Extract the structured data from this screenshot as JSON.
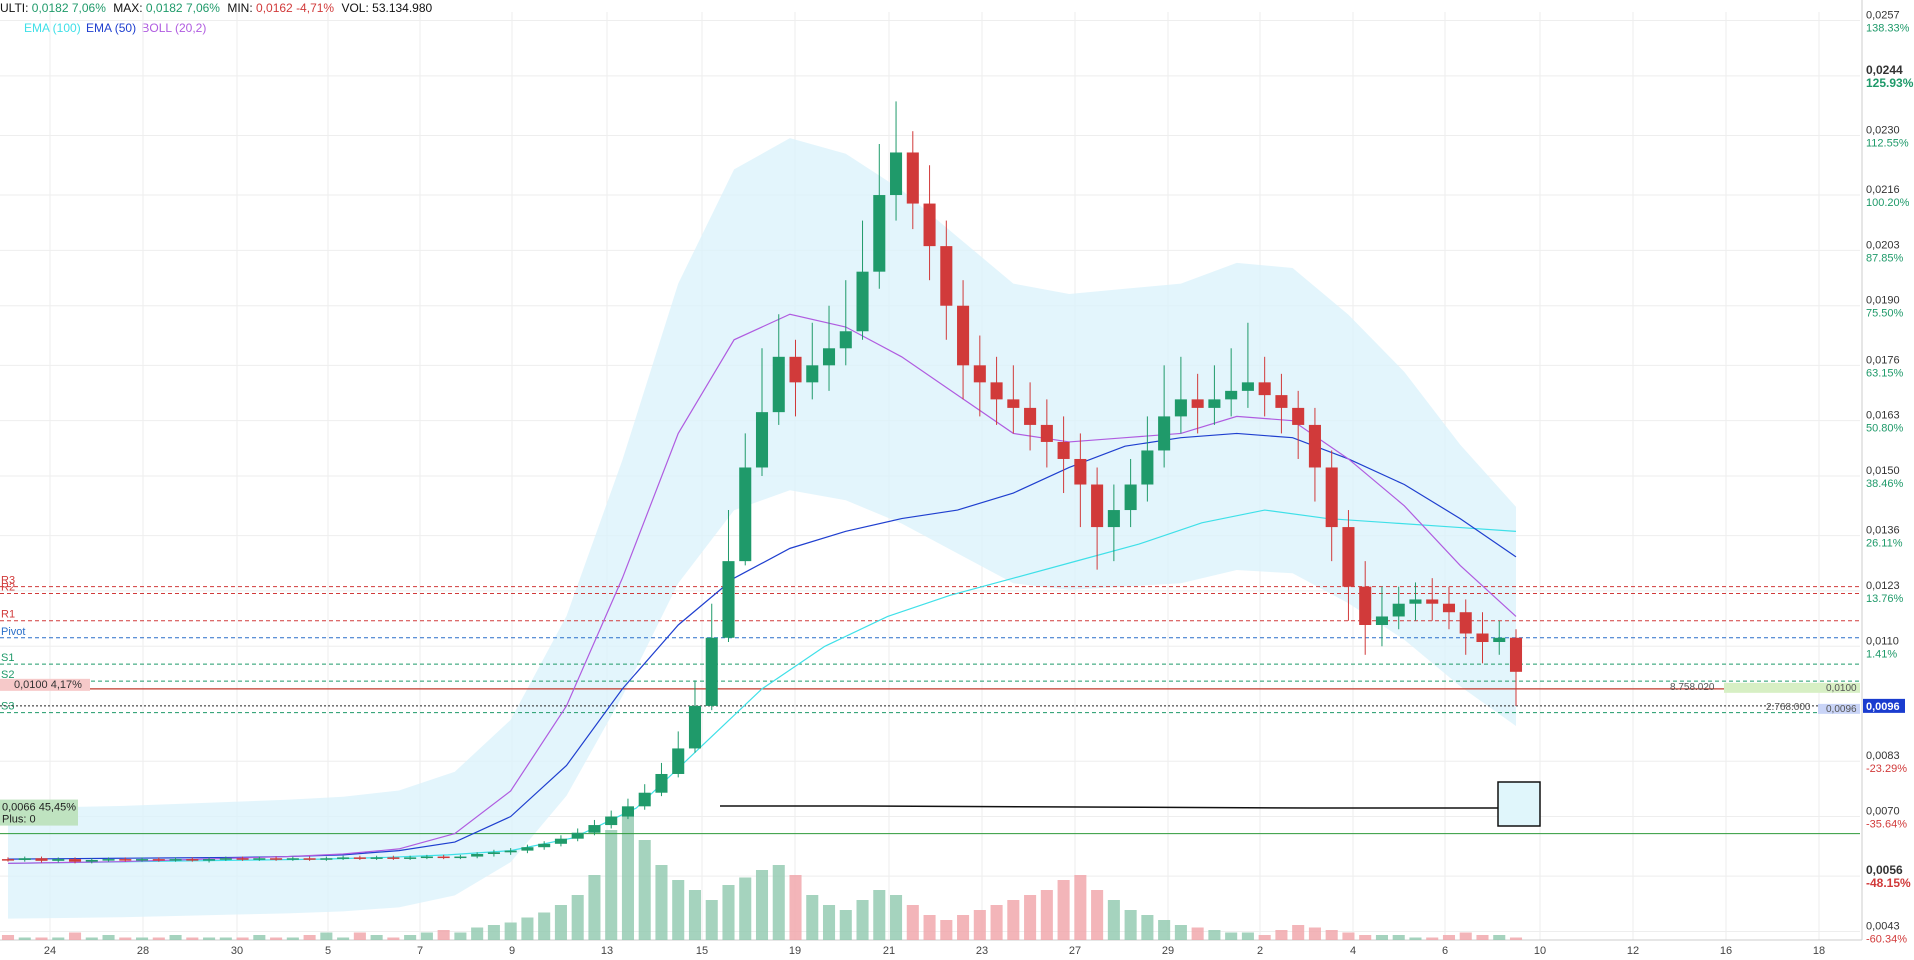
{
  "header": {
    "last_label": "ULTI:",
    "last_value": "0,0182",
    "last_pct": "7,06%",
    "max_label": "MAX:",
    "max_value": "0,0182",
    "max_pct": "7,06%",
    "min_label": "MIN:",
    "min_value": "0,0162",
    "min_pct": "-4,71%",
    "vol_label": "VOL:",
    "vol_value": "53.134.980"
  },
  "legend": [
    {
      "label": "EMA (100)",
      "color": "#3fe0e8"
    },
    {
      "label": "EMA (50)",
      "color": "#1f3fcf"
    },
    {
      "label": "BOLL (20,2)",
      "color": "#b05ce0"
    }
  ],
  "chart_data": {
    "type": "candlestick",
    "title": "",
    "x_tick_labels": [
      "24",
      "28",
      "30",
      "5",
      "7",
      "9",
      "13",
      "15",
      "19",
      "21",
      "23",
      "27",
      "29",
      "2",
      "4",
      "6",
      "10",
      "12",
      "16",
      "18"
    ],
    "price_axis_labels": [
      {
        "price": "0,0257",
        "pct": "138.33%"
      },
      {
        "price": "0,0244",
        "pct": "125.93%",
        "bold": true
      },
      {
        "price": "0,0230",
        "pct": "112.55%"
      },
      {
        "price": "0,0216",
        "pct": "100.20%"
      },
      {
        "price": "0,0203",
        "pct": "87.85%"
      },
      {
        "price": "0,0190",
        "pct": "75.50%"
      },
      {
        "price": "0,0176",
        "pct": "63.15%"
      },
      {
        "price": "0,0163",
        "pct": "50.80%"
      },
      {
        "price": "0,0150",
        "pct": "38.46%"
      },
      {
        "price": "0,0136",
        "pct": "26.11%"
      },
      {
        "price": "0,0123",
        "pct": "13.76%"
      },
      {
        "price": "0,0110",
        "pct": "1.41%"
      },
      {
        "price": "0,0083",
        "pct": "-23.29%"
      },
      {
        "price": "0,0070",
        "pct": "-35.64%"
      },
      {
        "price": "0,0056",
        "pct": "-48.15%",
        "bold": true
      },
      {
        "price": "0,0043",
        "pct": "-60.34%"
      }
    ],
    "ylim": [
      0.0041,
      0.0259
    ],
    "pivot_levels": [
      {
        "name": "R3",
        "value": 0.0124,
        "color": "#d13a3a"
      },
      {
        "name": "R2",
        "value": 0.01224,
        "color": "#d13a3a"
      },
      {
        "name": "R1",
        "value": 0.0116,
        "color": "#d13a3a"
      },
      {
        "name": "Pivot",
        "value": 0.0112,
        "color": "#2a6fc9"
      },
      {
        "name": "S1",
        "value": 0.01058,
        "color": "#1f9a6a"
      },
      {
        "name": "S2",
        "value": 0.01018,
        "color": "#1f9a6a"
      },
      {
        "name": "S3",
        "value": 0.00944,
        "color": "#1f9a6a"
      }
    ],
    "alert_line": {
      "value": 0.01,
      "label": "0,0100  4,17%",
      "order_qty": "8.758.020",
      "tag": "0,0100"
    },
    "current_line": {
      "value": 0.0096,
      "order_qty": "2.768.000",
      "tag": "0,0096",
      "badge": "0,0096"
    },
    "support_line": {
      "value": 0.0066,
      "label": "0,0066  45,45%",
      "label2": "Plus: 0"
    },
    "candles": [
      [
        0.006,
        0.00598,
        0.00604,
        0.00594
      ],
      [
        0.00598,
        0.00602,
        0.00606,
        0.00594
      ],
      [
        0.00602,
        0.00596,
        0.00606,
        0.00592
      ],
      [
        0.00596,
        0.006,
        0.00604,
        0.00592
      ],
      [
        0.006,
        0.00594,
        0.00604,
        0.0059
      ],
      [
        0.00594,
        0.00598,
        0.00602,
        0.0059
      ],
      [
        0.00598,
        0.006,
        0.00604,
        0.00594
      ],
      [
        0.006,
        0.00598,
        0.00604,
        0.00594
      ],
      [
        0.00598,
        0.006,
        0.00604,
        0.00594
      ],
      [
        0.006,
        0.00598,
        0.00604,
        0.00594
      ],
      [
        0.00598,
        0.006,
        0.00604,
        0.00594
      ],
      [
        0.006,
        0.00598,
        0.00604,
        0.00594
      ],
      [
        0.00598,
        0.006,
        0.00604,
        0.00592
      ],
      [
        0.006,
        0.00602,
        0.00606,
        0.00596
      ],
      [
        0.00602,
        0.006,
        0.00606,
        0.00596
      ],
      [
        0.006,
        0.00602,
        0.00606,
        0.00596
      ],
      [
        0.00602,
        0.006,
        0.00606,
        0.00596
      ],
      [
        0.006,
        0.00602,
        0.00606,
        0.00596
      ],
      [
        0.00602,
        0.006,
        0.00606,
        0.00596
      ],
      [
        0.006,
        0.00602,
        0.00606,
        0.00596
      ],
      [
        0.00602,
        0.00604,
        0.00608,
        0.00598
      ],
      [
        0.00604,
        0.00602,
        0.00608,
        0.00598
      ],
      [
        0.00602,
        0.00604,
        0.00608,
        0.00598
      ],
      [
        0.00604,
        0.00602,
        0.00608,
        0.00598
      ],
      [
        0.00602,
        0.00604,
        0.00608,
        0.00598
      ],
      [
        0.00604,
        0.00606,
        0.0061,
        0.006
      ],
      [
        0.00606,
        0.00604,
        0.0061,
        0.006
      ],
      [
        0.00604,
        0.00606,
        0.0061,
        0.006
      ],
      [
        0.00606,
        0.00612,
        0.00616,
        0.00602
      ],
      [
        0.00612,
        0.00616,
        0.00622,
        0.00606
      ],
      [
        0.00616,
        0.0062,
        0.00626,
        0.0061
      ],
      [
        0.0062,
        0.00628,
        0.00634,
        0.00614
      ],
      [
        0.00628,
        0.00636,
        0.00642,
        0.00622
      ],
      [
        0.00636,
        0.00648,
        0.00656,
        0.0063
      ],
      [
        0.00648,
        0.00662,
        0.00672,
        0.00642
      ],
      [
        0.00662,
        0.0068,
        0.00692,
        0.00656
      ],
      [
        0.0068,
        0.007,
        0.00714,
        0.00672
      ],
      [
        0.007,
        0.00724,
        0.00742,
        0.00694
      ],
      [
        0.00724,
        0.00756,
        0.00776,
        0.00716
      ],
      [
        0.00756,
        0.008,
        0.00826,
        0.00748
      ],
      [
        0.008,
        0.0086,
        0.009,
        0.00792
      ],
      [
        0.0086,
        0.0096,
        0.0102,
        0.0085
      ],
      [
        0.0096,
        0.0112,
        0.012,
        0.0095
      ],
      [
        0.0112,
        0.013,
        0.0142,
        0.0111
      ],
      [
        0.013,
        0.0152,
        0.016,
        0.0129
      ],
      [
        0.0152,
        0.0165,
        0.018,
        0.015
      ],
      [
        0.0165,
        0.0178,
        0.0188,
        0.0162
      ],
      [
        0.0178,
        0.0172,
        0.0182,
        0.0164
      ],
      [
        0.0172,
        0.0176,
        0.0186,
        0.0168
      ],
      [
        0.0176,
        0.018,
        0.019,
        0.017
      ],
      [
        0.018,
        0.0184,
        0.0196,
        0.0176
      ],
      [
        0.0184,
        0.0198,
        0.021,
        0.0182
      ],
      [
        0.0198,
        0.0216,
        0.0228,
        0.0194
      ],
      [
        0.0216,
        0.0226,
        0.0238,
        0.021
      ],
      [
        0.0226,
        0.0214,
        0.0231,
        0.0208
      ],
      [
        0.0214,
        0.0204,
        0.0223,
        0.0196
      ],
      [
        0.0204,
        0.019,
        0.021,
        0.0182
      ],
      [
        0.019,
        0.0176,
        0.0196,
        0.0168
      ],
      [
        0.0176,
        0.0172,
        0.0183,
        0.0164
      ],
      [
        0.0172,
        0.0168,
        0.0178,
        0.0162
      ],
      [
        0.0168,
        0.0166,
        0.0176,
        0.016
      ],
      [
        0.0166,
        0.0162,
        0.0172,
        0.0156
      ],
      [
        0.0162,
        0.0158,
        0.0168,
        0.0152
      ],
      [
        0.0158,
        0.0154,
        0.0164,
        0.0146
      ],
      [
        0.0154,
        0.0148,
        0.016,
        0.0138
      ],
      [
        0.0148,
        0.0138,
        0.0152,
        0.0128
      ],
      [
        0.0138,
        0.0142,
        0.0148,
        0.013
      ],
      [
        0.0142,
        0.0148,
        0.0154,
        0.0138
      ],
      [
        0.0148,
        0.0156,
        0.0164,
        0.0144
      ],
      [
        0.0156,
        0.0164,
        0.0176,
        0.0152
      ],
      [
        0.0164,
        0.0168,
        0.0178,
        0.016
      ],
      [
        0.0168,
        0.0166,
        0.0174,
        0.016
      ],
      [
        0.0166,
        0.0168,
        0.0176,
        0.0162
      ],
      [
        0.0168,
        0.017,
        0.018,
        0.0164
      ],
      [
        0.017,
        0.0172,
        0.0186,
        0.0166
      ],
      [
        0.0172,
        0.0169,
        0.0178,
        0.0164
      ],
      [
        0.0169,
        0.0166,
        0.0174,
        0.016
      ],
      [
        0.0166,
        0.0162,
        0.017,
        0.0154
      ],
      [
        0.0162,
        0.0152,
        0.0166,
        0.0144
      ],
      [
        0.0152,
        0.0138,
        0.0156,
        0.013
      ],
      [
        0.0138,
        0.0124,
        0.0142,
        0.0116
      ],
      [
        0.0124,
        0.0115,
        0.013,
        0.0108
      ],
      [
        0.0115,
        0.0117,
        0.0124,
        0.011
      ],
      [
        0.0117,
        0.012,
        0.0124,
        0.0114
      ],
      [
        0.012,
        0.0121,
        0.0125,
        0.0116
      ],
      [
        0.0121,
        0.012,
        0.0126,
        0.0116
      ],
      [
        0.012,
        0.0118,
        0.0124,
        0.0114
      ],
      [
        0.0118,
        0.0113,
        0.0121,
        0.0108
      ],
      [
        0.0113,
        0.0111,
        0.0118,
        0.0106
      ],
      [
        0.0111,
        0.0112,
        0.0116,
        0.0108
      ],
      [
        0.0112,
        0.0104,
        0.0114,
        0.0096
      ]
    ],
    "ema_50": [
      0.006,
      0.00601,
      0.00602,
      0.00603,
      0.00604,
      0.00606,
      0.0061,
      0.0062,
      0.0064,
      0.007,
      0.0082,
      0.01,
      0.0115,
      0.0126,
      0.0133,
      0.0137,
      0.014,
      0.0142,
      0.0146,
      0.0152,
      0.0157,
      0.0159,
      0.016,
      0.0159,
      0.0154,
      0.0148,
      0.014,
      0.0131
    ],
    "ema_100": [
      0.0059,
      0.00592,
      0.00594,
      0.00596,
      0.00598,
      0.006,
      0.00604,
      0.0061,
      0.0062,
      0.0065,
      0.0072,
      0.0086,
      0.01,
      0.011,
      0.0117,
      0.0122,
      0.0126,
      0.013,
      0.0134,
      0.0139,
      0.0142,
      0.014,
      0.0139,
      0.0138,
      0.0137
    ],
    "boll_mid": [
      0.0059,
      0.00592,
      0.00594,
      0.00598,
      0.00602,
      0.00606,
      0.00612,
      0.00624,
      0.0066,
      0.0076,
      0.0096,
      0.0126,
      0.016,
      0.0182,
      0.0188,
      0.0185,
      0.0178,
      0.0169,
      0.016,
      0.0158,
      0.0159,
      0.016,
      0.0164,
      0.0163,
      0.0154,
      0.0143,
      0.0129,
      0.0117
    ],
    "volumes": [
      2,
      1,
      1,
      1,
      3,
      1,
      2,
      1,
      1,
      1,
      2,
      1,
      1,
      1,
      1,
      2,
      1,
      1,
      2,
      3,
      1,
      3,
      2,
      1,
      2,
      3,
      4,
      3,
      5,
      6,
      7,
      9,
      11,
      14,
      18,
      26,
      44,
      52,
      40,
      30,
      24,
      20,
      16,
      22,
      25,
      28,
      30,
      26,
      18,
      14,
      12,
      16,
      20,
      18,
      14,
      10,
      8,
      10,
      12,
      14,
      16,
      18,
      20,
      24,
      26,
      20,
      16,
      12,
      10,
      8,
      6,
      5,
      4,
      3,
      3,
      2,
      4,
      6,
      5,
      4,
      3,
      2,
      2,
      2,
      1,
      1,
      2,
      3,
      2,
      2,
      1
    ]
  }
}
